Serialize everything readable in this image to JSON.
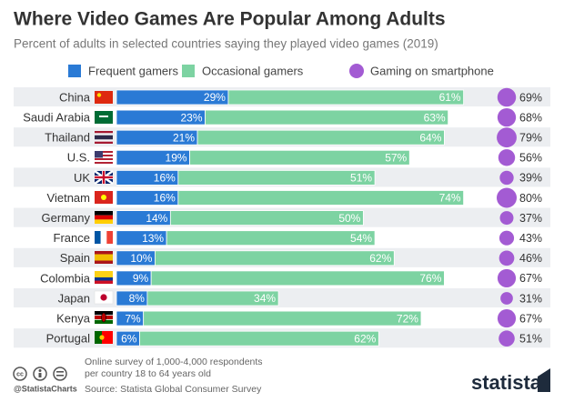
{
  "chart_data": {
    "type": "bar",
    "orientation": "horizontal",
    "stacked": true,
    "title": "Where Video Games Are Popular Among Adults",
    "subtitle": "Percent of adults in selected countries saying they played video games (2019)",
    "categories": [
      "China",
      "Saudi Arabia",
      "Thailand",
      "U.S.",
      "UK",
      "Vietnam",
      "Germany",
      "France",
      "Spain",
      "Colombia",
      "Japan",
      "Kenya",
      "Portugal"
    ],
    "series": [
      {
        "name": "Frequent gamers",
        "color": "#2a7ad5",
        "values": [
          29,
          23,
          21,
          19,
          16,
          16,
          14,
          13,
          10,
          9,
          8,
          7,
          6
        ],
        "value_labels": [
          "29%",
          "23%",
          "21%",
          "19%",
          "16%",
          "16%",
          "14%",
          "13%",
          "10%",
          "9%",
          "8%",
          "7%",
          "6%"
        ]
      },
      {
        "name": "Occasional gamers",
        "color": "#7dd3a2",
        "values": [
          61,
          63,
          64,
          57,
          51,
          74,
          50,
          54,
          62,
          76,
          34,
          72,
          62
        ],
        "value_labels": [
          "61%",
          "63%",
          "64%",
          "57%",
          "51%",
          "74%",
          "50%",
          "54%",
          "62%",
          "76%",
          "34%",
          "72%",
          "62%"
        ]
      },
      {
        "name": "Gaming on smartphone",
        "color": "#a35bd3",
        "marker": "circle",
        "values": [
          69,
          68,
          79,
          56,
          39,
          80,
          37,
          43,
          46,
          67,
          31,
          67,
          51
        ],
        "value_labels": [
          "69%",
          "68%",
          "79%",
          "56%",
          "39%",
          "80%",
          "37%",
          "43%",
          "46%",
          "67%",
          "31%",
          "67%",
          "51%"
        ]
      }
    ],
    "note": [
      "Online survey of 1,000-4,000 respondents",
      "per country 18 to 64 years old"
    ],
    "source": "Source: Statista Global Consumer Survey",
    "handle": "@StatistaCharts",
    "brand": "statista"
  }
}
